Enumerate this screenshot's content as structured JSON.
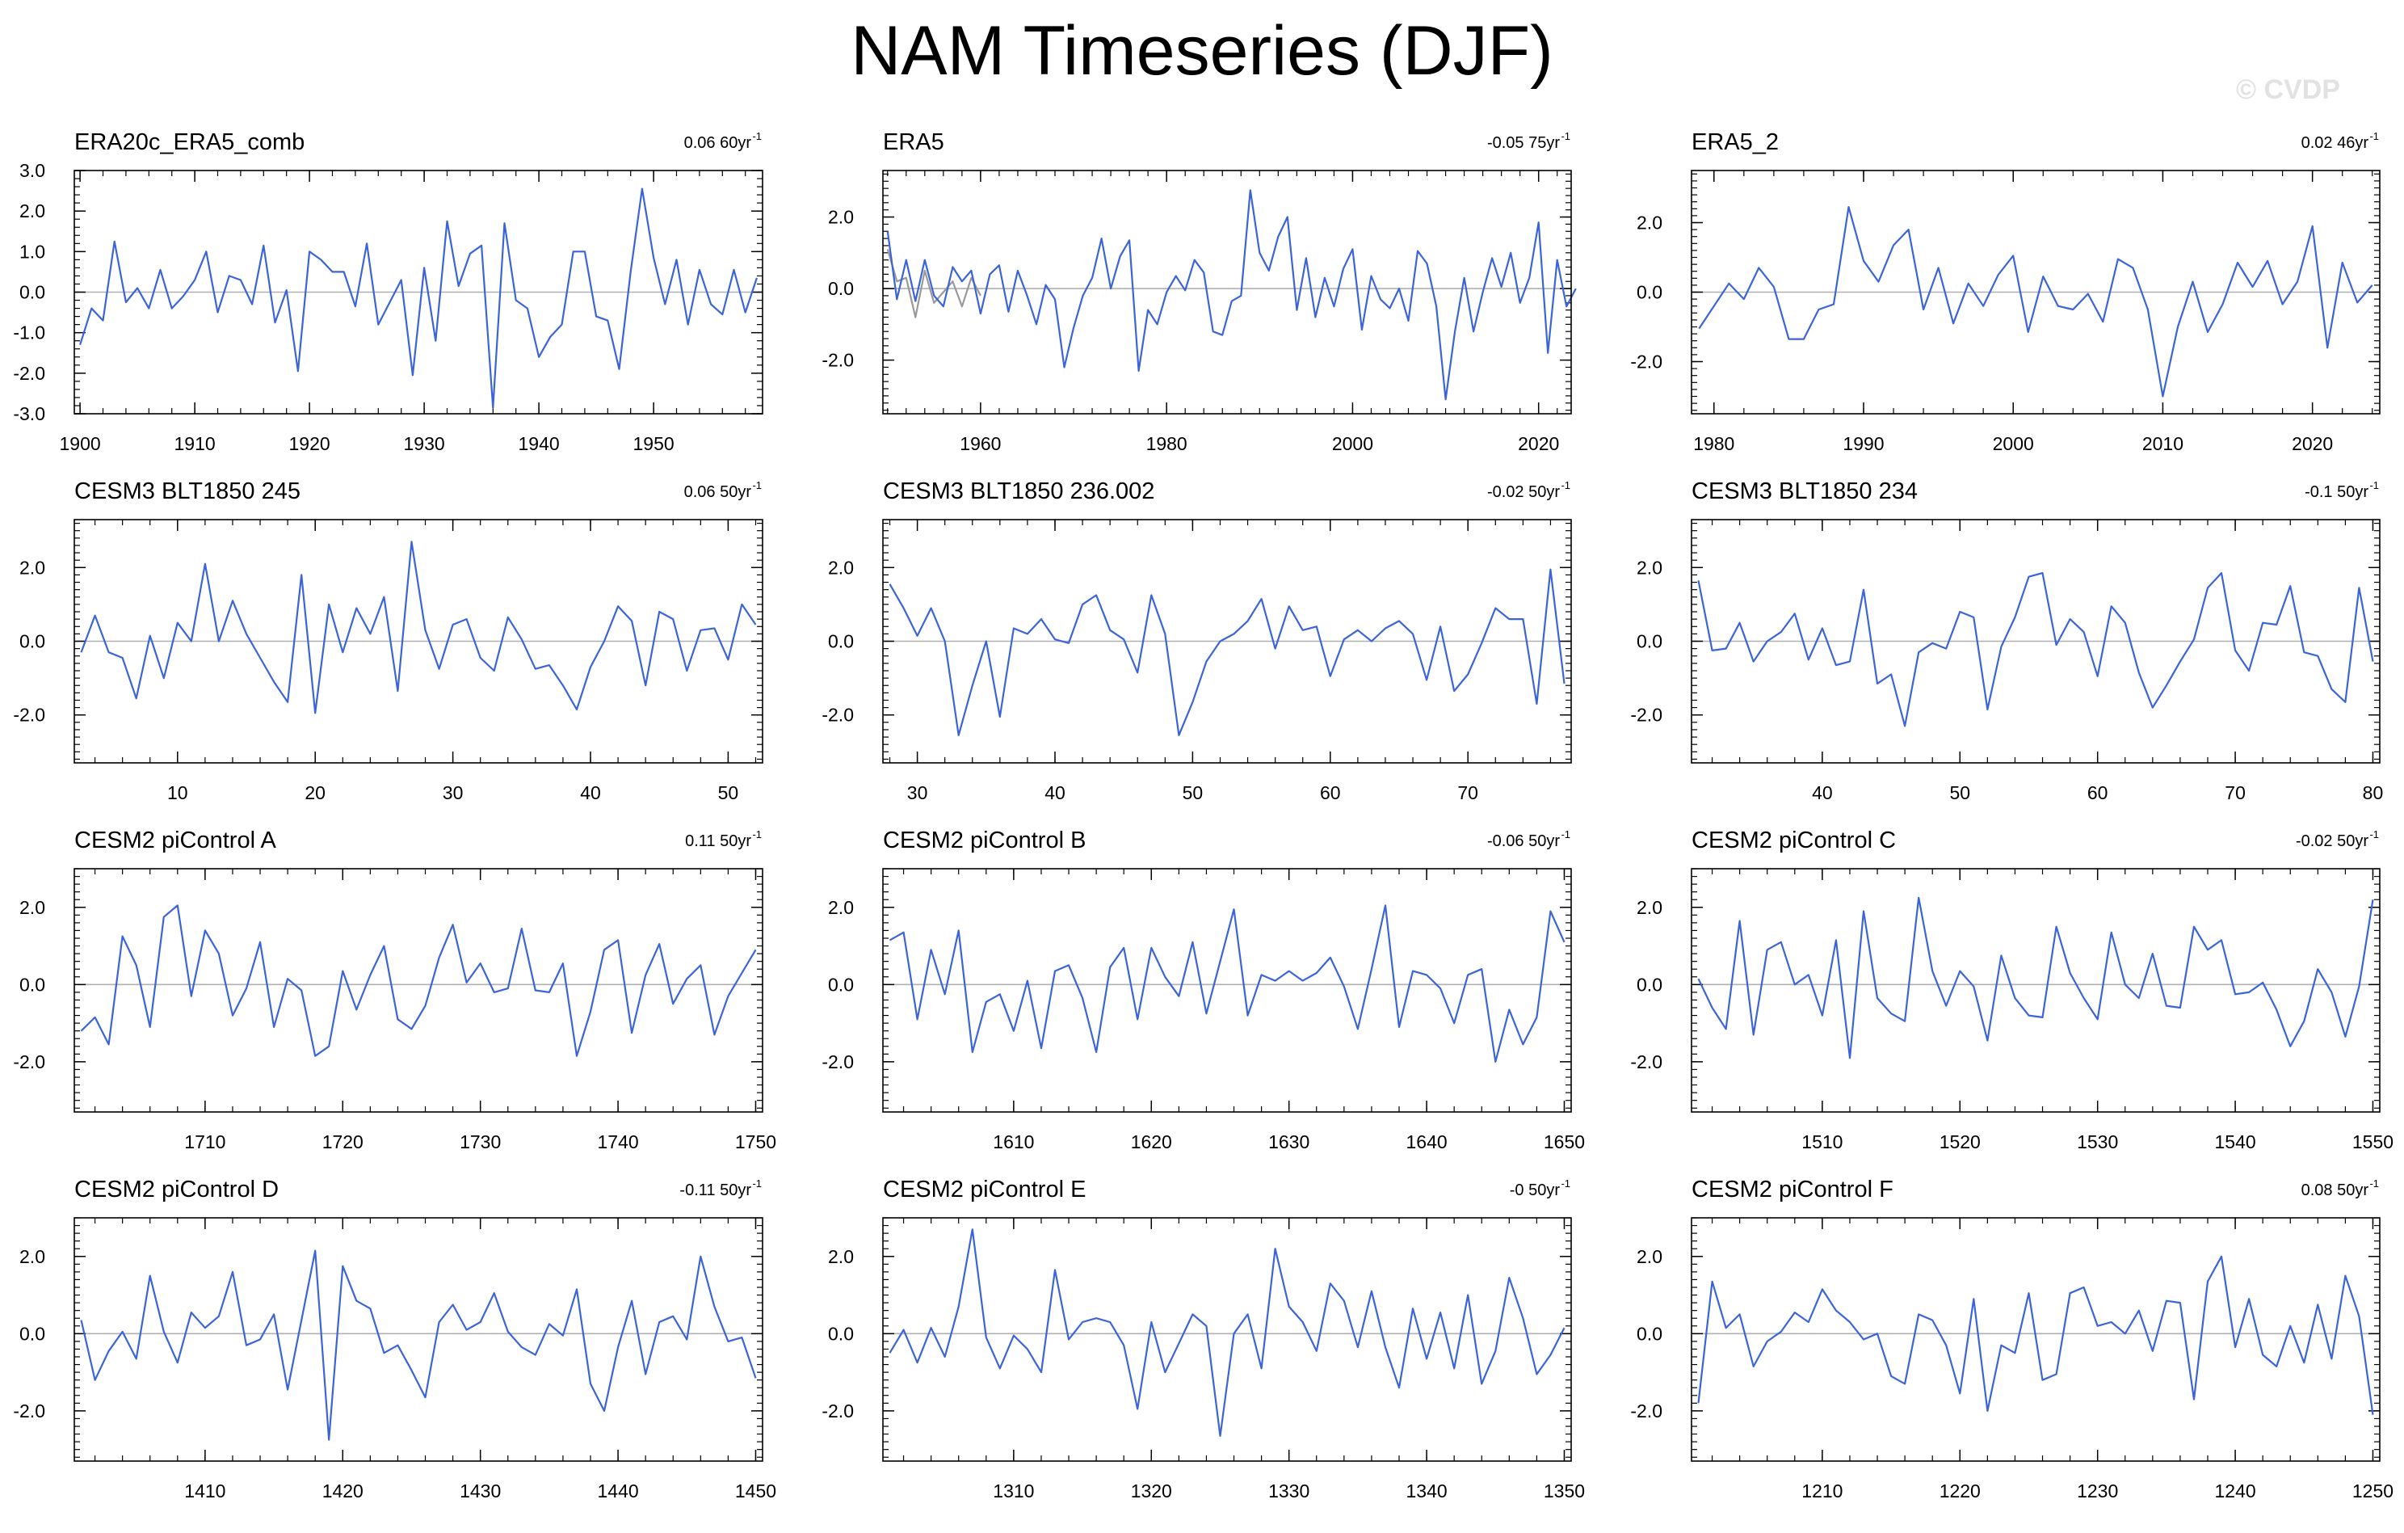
{
  "title": "NAM Timeseries (DJF)",
  "watermark": "© CVDP",
  "colors": {
    "series": "#3b64d8",
    "obs_secondary": "#999999",
    "zero_line": "#b0b0b0",
    "axis": "#000000"
  },
  "chart_data": [
    {
      "type": "line",
      "title": "ERA20c_ERA5_comb",
      "trend": "0.06 60yr",
      "trend_exp": "-1",
      "xlim": [
        1899.5,
        1959.5
      ],
      "ylim": [
        -3,
        3
      ],
      "xticks": [
        1900,
        1910,
        1920,
        1930,
        1940,
        1950
      ],
      "yticks": [
        -3,
        -2,
        -1,
        0,
        1,
        2,
        3
      ],
      "ytick_labels": [
        "-3.0",
        "-2.0",
        "-1.0",
        "0.0",
        "1.0",
        "2.0",
        "3.0"
      ],
      "x_start": 1900,
      "series": [
        {
          "values": [
            -1.3,
            -0.4,
            -0.7,
            1.25,
            -0.25,
            0.1,
            -0.4,
            0.55,
            -0.4,
            -0.1,
            0.3,
            1.0,
            -0.5,
            0.4,
            0.3,
            -0.3,
            1.15,
            -0.75,
            0.05,
            -1.95,
            1.0,
            0.8,
            0.5,
            0.5,
            -0.35,
            1.2,
            -0.8,
            -0.25,
            0.3,
            -2.05,
            0.6,
            -1.2,
            1.75,
            0.15,
            0.95,
            1.15,
            -2.85,
            1.7,
            -0.2,
            -0.4,
            -1.6,
            -1.1,
            -0.8,
            1.0,
            1.0,
            -0.6,
            -0.7,
            -1.9,
            0.5,
            2.55,
            0.85,
            -0.3,
            0.8,
            -0.8,
            0.55,
            -0.3,
            -0.55,
            0.55,
            -0.5,
            0.35
          ]
        }
      ]
    },
    {
      "type": "line",
      "title": "ERA5",
      "trend": "-0.05 75yr",
      "trend_exp": "-1",
      "xlim": [
        1949.5,
        2023.5
      ],
      "ylim": [
        -3.5,
        3.3
      ],
      "xticks": [
        1960,
        1980,
        2000,
        2020
      ],
      "yticks": [
        -2,
        0,
        2
      ],
      "ytick_labels": [
        "-2.0",
        "0.0",
        "2.0"
      ],
      "x_start": 1950,
      "series": [
        {
          "values": [
            1.6,
            -0.3,
            0.8,
            -0.35,
            0.8,
            -0.2,
            -0.5,
            0.6,
            0.2,
            0.5,
            -0.7,
            0.4,
            0.65,
            -0.65,
            0.5,
            -0.2,
            -1.0,
            0.1,
            -0.3,
            -2.2,
            -1.1,
            -0.2,
            0.3,
            1.4,
            0.0,
            0.9,
            1.35,
            -2.3,
            -0.6,
            -1.0,
            -0.1,
            0.35,
            -0.05,
            0.8,
            0.45,
            -1.2,
            -1.3,
            -0.35,
            -0.2,
            2.75,
            1.0,
            0.5,
            1.45,
            2.0,
            -0.6,
            0.85,
            -0.8,
            0.3,
            -0.5,
            0.55,
            1.1,
            -1.15,
            0.35,
            -0.3,
            -0.55,
            0.0,
            -0.9,
            1.05,
            0.7,
            -0.5,
            -3.1,
            -1.2,
            0.3,
            -1.2,
            -0.1,
            0.85,
            0.05,
            1.0,
            -0.4,
            0.3,
            1.85,
            -1.8,
            0.8,
            -0.5,
            0.0
          ]
        },
        {
          "values": [
            1.1,
            0.2,
            0.3,
            -0.8,
            0.5,
            -0.4,
            -0.1,
            0.2,
            -0.5,
            0.3,
            -0.2
          ]
        }
      ]
    },
    {
      "type": "line",
      "title": "ERA5_2",
      "trend": "0.02 46yr",
      "trend_exp": "-1",
      "xlim": [
        1978.5,
        2024.5
      ],
      "ylim": [
        -3.5,
        3.5
      ],
      "xticks": [
        1980,
        1990,
        2000,
        2010,
        2020
      ],
      "yticks": [
        -2,
        0,
        2
      ],
      "ytick_labels": [
        "-2.0",
        "0.0",
        "2.0"
      ],
      "x_start": 1979,
      "series": [
        {
          "values": [
            -1.05,
            -0.4,
            0.25,
            -0.2,
            0.7,
            0.15,
            -1.35,
            -1.35,
            -0.5,
            -0.35,
            2.45,
            0.9,
            0.3,
            1.35,
            1.8,
            -0.5,
            0.7,
            -0.9,
            0.25,
            -0.4,
            0.5,
            1.05,
            -1.15,
            0.45,
            -0.4,
            -0.5,
            -0.05,
            -0.85,
            0.95,
            0.7,
            -0.5,
            -3.0,
            -1.0,
            0.3,
            -1.15,
            -0.35,
            0.85,
            0.15,
            0.9,
            -0.35,
            0.3,
            1.9,
            -1.6,
            0.85,
            -0.3,
            0.2
          ]
        }
      ]
    },
    {
      "type": "line",
      "title": "CESM3 BLT1850 245",
      "trend": "0.06 50yr",
      "trend_exp": "-1",
      "xlim": [
        2.5,
        52.5
      ],
      "ylim": [
        -3.3,
        3.3
      ],
      "xticks": [
        10,
        20,
        30,
        40,
        50
      ],
      "yticks": [
        -2,
        0,
        2
      ],
      "ytick_labels": [
        "-2.0",
        "0.0",
        "2.0"
      ],
      "x_start": 3,
      "series": [
        {
          "values": [
            -0.3,
            0.7,
            -0.3,
            -0.45,
            -1.55,
            0.15,
            -1.0,
            0.5,
            0.0,
            2.1,
            0.0,
            1.1,
            0.2,
            -0.45,
            -1.1,
            -1.65,
            1.8,
            -1.95,
            1.0,
            -0.3,
            0.9,
            0.2,
            1.2,
            -1.35,
            2.7,
            0.3,
            -0.75,
            0.45,
            0.6,
            -0.45,
            -0.8,
            0.65,
            0.05,
            -0.75,
            -0.65,
            -1.2,
            -1.85,
            -0.7,
            0.0,
            0.95,
            0.55,
            -1.2,
            0.8,
            0.6,
            -0.8,
            0.3,
            0.35,
            -0.5,
            1.0,
            0.45
          ]
        }
      ]
    },
    {
      "type": "line",
      "title": "CESM3 BLT1850 236.002",
      "trend": "-0.02 50yr",
      "trend_exp": "-1",
      "xlim": [
        27.5,
        77.5
      ],
      "ylim": [
        -3.3,
        3.3
      ],
      "xticks": [
        30,
        40,
        50,
        60,
        70
      ],
      "yticks": [
        -2,
        0,
        2
      ],
      "ytick_labels": [
        "-2.0",
        "0.0",
        "2.0"
      ],
      "x_start": 28,
      "series": [
        {
          "values": [
            1.55,
            0.9,
            0.15,
            0.9,
            0.0,
            -2.55,
            -1.2,
            0.0,
            -2.05,
            0.35,
            0.2,
            0.6,
            0.05,
            -0.05,
            1.0,
            1.25,
            0.3,
            0.05,
            -0.85,
            1.25,
            0.2,
            -2.55,
            -1.65,
            -0.55,
            0.0,
            0.2,
            0.55,
            1.15,
            -0.2,
            0.95,
            0.3,
            0.4,
            -0.95,
            0.05,
            0.3,
            0.0,
            0.35,
            0.55,
            0.2,
            -1.05,
            0.4,
            -1.35,
            -0.9,
            -0.05,
            0.9,
            0.6,
            0.6,
            -1.7,
            1.95,
            -1.15
          ]
        }
      ]
    },
    {
      "type": "line",
      "title": "CESM3 BLT1850 234",
      "trend": "-0.1 50yr",
      "trend_exp": "-1",
      "xlim": [
        30.5,
        80.5
      ],
      "ylim": [
        -3.3,
        3.3
      ],
      "xticks": [
        40,
        50,
        60,
        70,
        80
      ],
      "yticks": [
        -2,
        0,
        2
      ],
      "ytick_labels": [
        "-2.0",
        "0.0",
        "2.0"
      ],
      "x_start": 31,
      "series": [
        {
          "values": [
            1.65,
            -0.25,
            -0.2,
            0.5,
            -0.55,
            0.0,
            0.25,
            0.75,
            -0.5,
            0.35,
            -0.65,
            -0.55,
            1.4,
            -1.15,
            -0.9,
            -2.3,
            -0.3,
            -0.05,
            -0.2,
            0.8,
            0.65,
            -1.85,
            -0.15,
            0.65,
            1.75,
            1.85,
            -0.1,
            0.6,
            0.25,
            -0.95,
            0.95,
            0.5,
            -0.85,
            -1.8,
            -1.2,
            -0.55,
            0.05,
            1.45,
            1.85,
            -0.25,
            -0.8,
            0.5,
            0.45,
            1.5,
            -0.3,
            -0.4,
            -1.3,
            -1.65,
            1.45,
            -0.55
          ]
        }
      ]
    },
    {
      "type": "line",
      "title": "CESM2 piControl A",
      "trend": "0.11 50yr",
      "trend_exp": "-1",
      "xlim": [
        1700.5,
        1750.5
      ],
      "ylim": [
        -3.3,
        3.0
      ],
      "xticks": [
        1710,
        1720,
        1730,
        1740,
        1750
      ],
      "yticks": [
        -2,
        0,
        2
      ],
      "ytick_labels": [
        "-2.0",
        "0.0",
        "2.0"
      ],
      "x_start": 1701,
      "series": [
        {
          "values": [
            -1.2,
            -0.85,
            -1.55,
            1.25,
            0.5,
            -1.1,
            1.75,
            2.05,
            -0.3,
            1.4,
            0.8,
            -0.8,
            -0.1,
            1.1,
            -1.1,
            0.15,
            -0.15,
            -1.85,
            -1.6,
            0.35,
            -0.65,
            0.25,
            1.0,
            -0.9,
            -1.15,
            -0.55,
            0.7,
            1.55,
            0.05,
            0.55,
            -0.2,
            -0.1,
            1.45,
            -0.15,
            -0.2,
            0.55,
            -1.85,
            -0.7,
            0.9,
            1.15,
            -1.25,
            0.25,
            1.05,
            -0.5,
            0.15,
            0.5,
            -1.3,
            -0.3,
            0.3,
            0.9
          ]
        }
      ]
    },
    {
      "type": "line",
      "title": "CESM2 piControl B",
      "trend": "-0.06 50yr",
      "trend_exp": "-1",
      "xlim": [
        1600.5,
        1650.5
      ],
      "ylim": [
        -3.3,
        3.0
      ],
      "xticks": [
        1610,
        1620,
        1630,
        1640,
        1650
      ],
      "yticks": [
        -2,
        0,
        2
      ],
      "ytick_labels": [
        "-2.0",
        "0.0",
        "2.0"
      ],
      "x_start": 1601,
      "series": [
        {
          "values": [
            1.15,
            1.35,
            -0.9,
            0.9,
            -0.25,
            1.4,
            -1.75,
            -0.45,
            -0.25,
            -1.2,
            0.1,
            -1.65,
            0.35,
            0.5,
            -0.35,
            -1.75,
            0.45,
            0.95,
            -0.9,
            0.95,
            0.2,
            -0.3,
            1.1,
            -0.75,
            0.6,
            1.95,
            -0.8,
            0.25,
            0.1,
            0.35,
            0.1,
            0.3,
            0.7,
            -0.05,
            -1.15,
            0.4,
            2.05,
            -1.1,
            0.35,
            0.25,
            -0.1,
            -1.0,
            0.25,
            0.4,
            -2.0,
            -0.65,
            -1.55,
            -0.85,
            1.9,
            1.1
          ]
        }
      ]
    },
    {
      "type": "line",
      "title": "CESM2 piControl C",
      "trend": "-0.02 50yr",
      "trend_exp": "-1",
      "xlim": [
        1500.5,
        1550.5
      ],
      "ylim": [
        -3.3,
        3.0
      ],
      "xticks": [
        1510,
        1520,
        1530,
        1540,
        1550
      ],
      "yticks": [
        -2,
        0,
        2
      ],
      "ytick_labels": [
        "-2.0",
        "0.0",
        "2.0"
      ],
      "x_start": 1501,
      "series": [
        {
          "values": [
            0.15,
            -0.6,
            -1.15,
            1.65,
            -1.3,
            0.9,
            1.1,
            0.0,
            0.25,
            -0.8,
            1.15,
            -1.9,
            1.9,
            -0.35,
            -0.75,
            -0.95,
            2.25,
            0.35,
            -0.55,
            0.35,
            -0.05,
            -1.45,
            0.75,
            -0.35,
            -0.8,
            -0.85,
            1.5,
            0.3,
            -0.35,
            -0.9,
            1.35,
            0.0,
            -0.35,
            0.8,
            -0.55,
            -0.6,
            1.5,
            0.9,
            1.15,
            -0.25,
            -0.2,
            0.05,
            -0.65,
            -1.6,
            -0.95,
            0.4,
            -0.2,
            -1.35,
            -0.05,
            2.2
          ]
        }
      ]
    },
    {
      "type": "line",
      "title": "CESM2 piControl D",
      "trend": "-0.11 50yr",
      "trend_exp": "-1",
      "xlim": [
        1400.5,
        1450.5
      ],
      "ylim": [
        -3.3,
        3.0
      ],
      "xticks": [
        1410,
        1420,
        1430,
        1440,
        1450
      ],
      "yticks": [
        -2,
        0,
        2
      ],
      "ytick_labels": [
        "-2.0",
        "0.0",
        "2.0"
      ],
      "x_start": 1401,
      "series": [
        {
          "values": [
            0.35,
            -1.2,
            -0.45,
            0.05,
            -0.65,
            1.5,
            0.05,
            -0.75,
            0.55,
            0.15,
            0.45,
            1.6,
            -0.3,
            -0.15,
            0.5,
            -1.45,
            0.35,
            2.15,
            -2.75,
            1.75,
            0.85,
            0.65,
            -0.5,
            -0.3,
            -0.95,
            -1.65,
            0.3,
            0.75,
            0.1,
            0.3,
            1.05,
            0.05,
            -0.35,
            -0.55,
            0.25,
            -0.05,
            1.15,
            -1.3,
            -2.0,
            -0.35,
            0.85,
            -1.05,
            0.3,
            0.45,
            -0.15,
            2.0,
            0.7,
            -0.2,
            -0.1,
            -1.15
          ]
        }
      ]
    },
    {
      "type": "line",
      "title": "CESM2 piControl E",
      "trend": "-0 50yr",
      "trend_exp": "-1",
      "xlim": [
        1300.5,
        1350.5
      ],
      "ylim": [
        -3.3,
        3.0
      ],
      "xticks": [
        1310,
        1320,
        1330,
        1340,
        1350
      ],
      "yticks": [
        -2,
        0,
        2
      ],
      "ytick_labels": [
        "-2.0",
        "0.0",
        "2.0"
      ],
      "x_start": 1301,
      "series": [
        {
          "values": [
            -0.5,
            0.1,
            -0.75,
            0.15,
            -0.6,
            0.7,
            2.7,
            -0.1,
            -0.9,
            -0.05,
            -0.4,
            -1.0,
            1.65,
            -0.15,
            0.3,
            0.4,
            0.3,
            -0.3,
            -1.95,
            0.3,
            -1.0,
            -0.25,
            0.5,
            0.2,
            -2.65,
            0.0,
            0.5,
            -0.9,
            2.2,
            0.7,
            0.3,
            -0.45,
            1.3,
            0.85,
            -0.35,
            1.1,
            -0.35,
            -1.4,
            0.65,
            -0.65,
            0.55,
            -0.9,
            1.0,
            -1.3,
            -0.45,
            1.45,
            0.4,
            -1.05,
            -0.55,
            0.15
          ]
        }
      ]
    },
    {
      "type": "line",
      "title": "CESM2 piControl F",
      "trend": "0.08 50yr",
      "trend_exp": "-1",
      "xlim": [
        1200.5,
        1250.5
      ],
      "ylim": [
        -3.3,
        3.0
      ],
      "xticks": [
        1210,
        1220,
        1230,
        1240,
        1250
      ],
      "yticks": [
        -2,
        0,
        2
      ],
      "ytick_labels": [
        "-2.0",
        "0.0",
        "2.0"
      ],
      "x_start": 1201,
      "series": [
        {
          "values": [
            -1.8,
            1.35,
            0.15,
            0.5,
            -0.85,
            -0.2,
            0.05,
            0.55,
            0.3,
            1.15,
            0.6,
            0.3,
            -0.15,
            0.0,
            -1.1,
            -1.3,
            0.5,
            0.35,
            -0.3,
            -1.55,
            0.9,
            -2.0,
            -0.3,
            -0.5,
            1.05,
            -1.2,
            -1.05,
            1.05,
            1.2,
            0.2,
            0.3,
            0.0,
            0.6,
            -0.45,
            0.85,
            0.8,
            -1.7,
            1.35,
            2.0,
            -0.35,
            0.9,
            -0.55,
            -0.85,
            0.2,
            -0.75,
            0.75,
            -0.65,
            1.5,
            0.45,
            -2.1
          ]
        }
      ]
    }
  ]
}
